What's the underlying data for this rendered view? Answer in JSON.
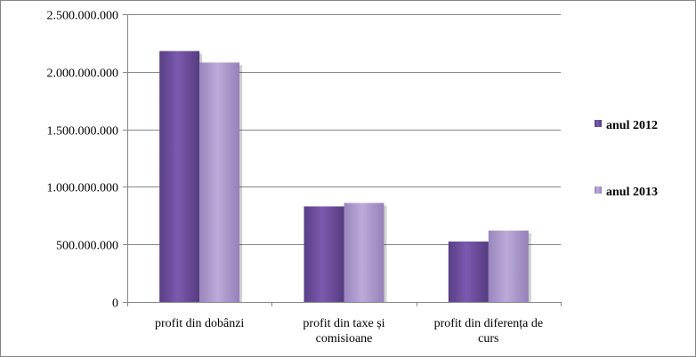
{
  "chart_data": {
    "type": "bar",
    "categories": [
      [
        "profit din dobânzi"
      ],
      [
        "profit din taxe  și",
        "comisioane"
      ],
      [
        "profit din diferența de",
        "curs"
      ]
    ],
    "series": [
      {
        "name": "anul 2012",
        "values": [
          2180000000,
          830000000,
          525000000
        ],
        "color": "#6B4C9A"
      },
      {
        "name": "anul 2013",
        "values": [
          2080000000,
          860000000,
          620000000
        ],
        "color": "#A893C9"
      }
    ],
    "y_ticks": [
      "0",
      "500.000.000",
      "1.000.000.000",
      "1.500.000.000",
      "2.000.000.000",
      "2.500.000.000"
    ],
    "ylim": [
      0,
      2500000000
    ],
    "grid": true,
    "legend_position": "right"
  }
}
